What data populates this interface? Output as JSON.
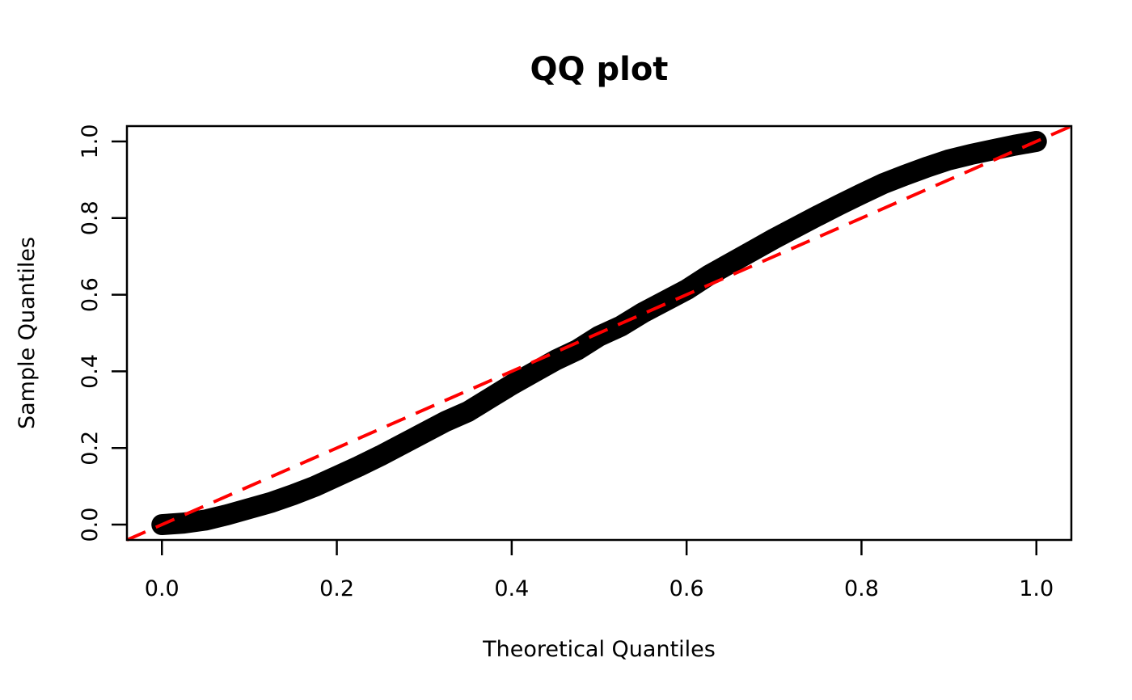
{
  "chart_data": {
    "type": "scatter",
    "title": "QQ plot",
    "xlabel": "Theoretical Quantiles",
    "ylabel": "Sample Quantiles",
    "x_tick_labels": [
      "0.0",
      "0.2",
      "0.4",
      "0.6",
      "0.8",
      "1.0"
    ],
    "y_tick_labels": [
      "0.0",
      "0.2",
      "0.4",
      "0.6",
      "0.8",
      "1.0"
    ],
    "x_ticks": [
      0.0,
      0.2,
      0.4,
      0.6,
      0.8,
      1.0
    ],
    "y_ticks": [
      0.0,
      0.2,
      0.4,
      0.6,
      0.8,
      1.0
    ],
    "xlim": [
      -0.04,
      1.04
    ],
    "ylim": [
      -0.04,
      1.04
    ],
    "grid": false,
    "legend": "none",
    "series": [
      {
        "name": "qq-points",
        "type": "scatter",
        "marker": "filled-circle",
        "color": "#000000",
        "x": [
          0.0,
          0.025,
          0.05,
          0.075,
          0.1,
          0.125,
          0.15,
          0.175,
          0.2,
          0.225,
          0.25,
          0.275,
          0.3,
          0.325,
          0.35,
          0.375,
          0.4,
          0.425,
          0.45,
          0.475,
          0.5,
          0.525,
          0.55,
          0.575,
          0.6,
          0.625,
          0.65,
          0.675,
          0.7,
          0.725,
          0.75,
          0.775,
          0.8,
          0.825,
          0.85,
          0.875,
          0.9,
          0.925,
          0.95,
          0.975,
          1.0
        ],
        "y": [
          0.0,
          0.004,
          0.012,
          0.026,
          0.042,
          0.058,
          0.078,
          0.1,
          0.126,
          0.152,
          0.18,
          0.21,
          0.24,
          0.27,
          0.295,
          0.33,
          0.365,
          0.397,
          0.429,
          0.456,
          0.492,
          0.518,
          0.553,
          0.583,
          0.613,
          0.65,
          0.682,
          0.714,
          0.746,
          0.776,
          0.806,
          0.835,
          0.863,
          0.89,
          0.912,
          0.933,
          0.952,
          0.966,
          0.978,
          0.99,
          1.0
        ]
      }
    ],
    "reference_line": {
      "name": "y-equals-x",
      "slope": 1,
      "intercept": 0,
      "style": "dashed",
      "color": "#FF0000"
    }
  },
  "colors": {
    "background": "#FFFFFF",
    "points": "#000000",
    "reference": "#FF0000",
    "axis": "#000000"
  }
}
